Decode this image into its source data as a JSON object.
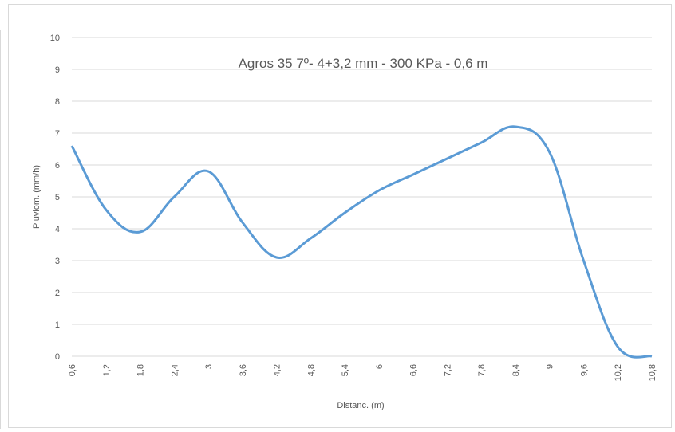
{
  "chart_data": {
    "type": "line",
    "title": "Agros 35 7º- 4+3,2 mm - 300 KPa - 0,6 m",
    "xlabel": "Distanc. (m)",
    "ylabel": "Pluviom. (mm/h)",
    "ylim": [
      0,
      10
    ],
    "yticks": [
      "0",
      "1",
      "2",
      "3",
      "4",
      "5",
      "6",
      "7",
      "8",
      "9",
      "10"
    ],
    "categories": [
      "0,6",
      "1,2",
      "1,8",
      "2,4",
      "3",
      "3,6",
      "4,2",
      "4,8",
      "5,4",
      "6",
      "6,6",
      "7,2",
      "7,8",
      "8,4",
      "9",
      "9,6",
      "10,2",
      "10,8"
    ],
    "series": [
      {
        "values": [
          6.6,
          4.6,
          3.9,
          5.0,
          5.8,
          4.2,
          3.1,
          3.7,
          4.5,
          5.2,
          5.7,
          6.2,
          6.7,
          7.2,
          6.4,
          3.0,
          0.3,
          0.0
        ]
      }
    ],
    "grid": true,
    "colors": {
      "line": "#5b9bd5",
      "grid": "#d9d9d9",
      "text": "#595959"
    }
  }
}
